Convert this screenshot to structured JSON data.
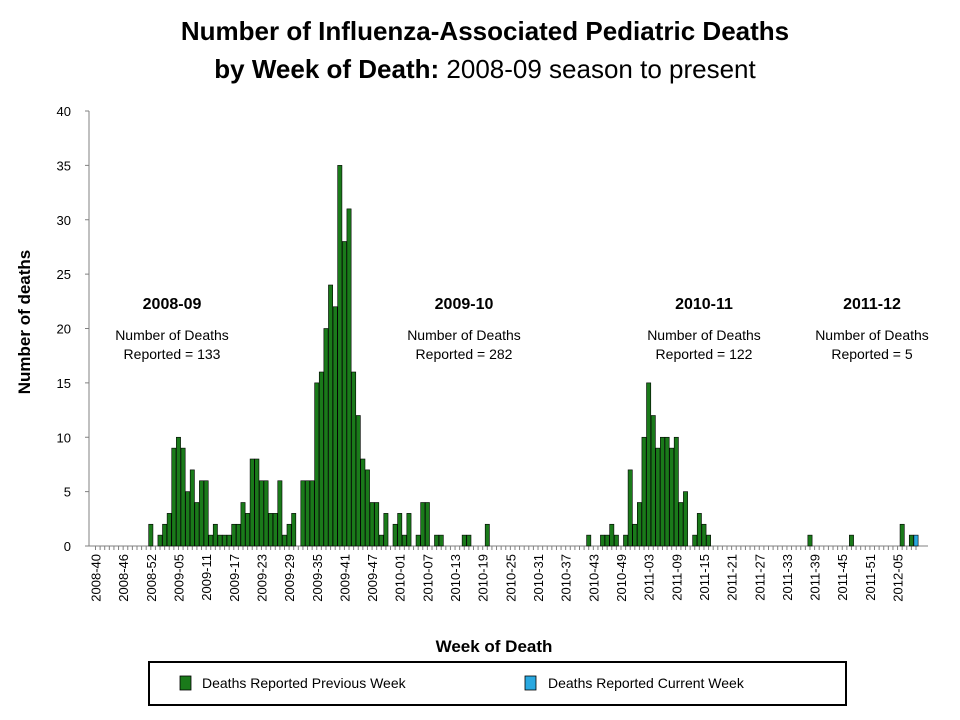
{
  "chart_data": {
    "type": "bar",
    "title_line1": "Number of Influenza-Associated Pediatric Deaths",
    "title_line2_bold": "by Week of Death:",
    "title_line2_rest": " 2008-09 season to present",
    "xlabel": "Week of Death",
    "ylabel": "Number of deaths",
    "ylim": [
      0,
      40
    ],
    "yticks": [
      0,
      5,
      10,
      15,
      20,
      25,
      30,
      35,
      40
    ],
    "start_week": "2008-40",
    "xtick_labels": [
      "2008-40",
      "2008-46",
      "2008-52",
      "2009-05",
      "2009-11",
      "2009-17",
      "2009-23",
      "2009-29",
      "2009-35",
      "2009-41",
      "2009-47",
      "2010-01",
      "2010-07",
      "2010-13",
      "2010-19",
      "2010-25",
      "2010-31",
      "2010-37",
      "2010-43",
      "2010-49",
      "2011-03",
      "2011-09",
      "2011-15",
      "2011-21",
      "2011-27",
      "2011-33",
      "2011-39",
      "2011-45",
      "2011-51",
      "2012-05"
    ],
    "series": [
      {
        "name": "Deaths Reported Previous Week",
        "color": "#1a7a1a",
        "values": [
          0,
          0,
          0,
          0,
          0,
          0,
          0,
          0,
          0,
          0,
          0,
          0,
          2,
          0,
          1,
          2,
          3,
          9,
          10,
          9,
          5,
          7,
          4,
          6,
          6,
          1,
          2,
          1,
          1,
          1,
          2,
          2,
          4,
          3,
          8,
          8,
          6,
          6,
          3,
          3,
          6,
          1,
          2,
          3,
          0,
          6,
          6,
          6,
          15,
          16,
          20,
          24,
          22,
          35,
          28,
          31,
          16,
          12,
          8,
          7,
          4,
          4,
          1,
          3,
          0,
          2,
          3,
          1,
          3,
          0,
          1,
          4,
          4,
          0,
          1,
          1,
          0,
          0,
          0,
          0,
          1,
          1,
          0,
          0,
          0,
          2,
          0,
          0,
          0,
          0,
          0,
          0,
          0,
          0,
          0,
          0,
          0,
          0,
          0,
          0,
          0,
          0,
          0,
          0,
          0,
          0,
          0,
          1,
          0,
          0,
          1,
          1,
          2,
          1,
          0,
          1,
          7,
          2,
          4,
          10,
          15,
          12,
          9,
          10,
          10,
          9,
          10,
          4,
          5,
          0,
          1,
          3,
          2,
          1,
          0,
          0,
          0,
          0,
          0,
          0,
          0,
          0,
          0,
          0,
          0,
          0,
          0,
          0,
          0,
          0,
          0,
          0,
          0,
          0,
          0,
          1,
          0,
          0,
          0,
          0,
          0,
          0,
          0,
          0,
          1,
          0,
          0,
          0,
          0,
          0,
          0,
          0,
          0,
          0,
          0,
          2,
          0,
          1,
          0
        ]
      },
      {
        "name": "Deaths Reported Current Week",
        "color": "#29a8e0",
        "values": [
          0,
          0,
          0,
          0,
          0,
          0,
          0,
          0,
          0,
          0,
          0,
          0,
          0,
          0,
          0,
          0,
          0,
          0,
          0,
          0,
          0,
          0,
          0,
          0,
          0,
          0,
          0,
          0,
          0,
          0,
          0,
          0,
          0,
          0,
          0,
          0,
          0,
          0,
          0,
          0,
          0,
          0,
          0,
          0,
          0,
          0,
          0,
          0,
          0,
          0,
          0,
          0,
          0,
          0,
          0,
          0,
          0,
          0,
          0,
          0,
          0,
          0,
          0,
          0,
          0,
          0,
          0,
          0,
          0,
          0,
          0,
          0,
          0,
          0,
          0,
          0,
          0,
          0,
          0,
          0,
          0,
          0,
          0,
          0,
          0,
          0,
          0,
          0,
          0,
          0,
          0,
          0,
          0,
          0,
          0,
          0,
          0,
          0,
          0,
          0,
          0,
          0,
          0,
          0,
          0,
          0,
          0,
          0,
          0,
          0,
          0,
          0,
          0,
          0,
          0,
          0,
          0,
          0,
          0,
          0,
          0,
          0,
          0,
          0,
          0,
          0,
          0,
          0,
          0,
          0,
          0,
          0,
          0,
          0,
          0,
          0,
          0,
          0,
          0,
          0,
          0,
          0,
          0,
          0,
          0,
          0,
          0,
          0,
          0,
          0,
          0,
          0,
          0,
          0,
          0,
          0,
          0,
          0,
          0,
          0,
          0,
          0,
          0,
          0,
          0,
          0,
          0,
          0,
          0,
          0,
          0,
          0,
          0,
          0,
          0,
          0,
          0,
          0,
          1
        ]
      }
    ],
    "annotations": [
      {
        "season": "2008-09",
        "line1": "Number of Deaths",
        "line2": "Reported = 133"
      },
      {
        "season": "2009-10",
        "line1": "Number of Deaths",
        "line2": "Reported = 282"
      },
      {
        "season": "2010-11",
        "line1": "Number of Deaths",
        "line2": "Reported = 122"
      },
      {
        "season": "2011-12",
        "line1": "Number of Deaths",
        "line2": "Reported = 5"
      }
    ],
    "legend": [
      {
        "label": "Deaths Reported Previous Week",
        "color": "#1a7a1a"
      },
      {
        "label": "Deaths Reported Current Week",
        "color": "#29a8e0"
      }
    ],
    "grid": false,
    "legend_position": "bottom"
  }
}
